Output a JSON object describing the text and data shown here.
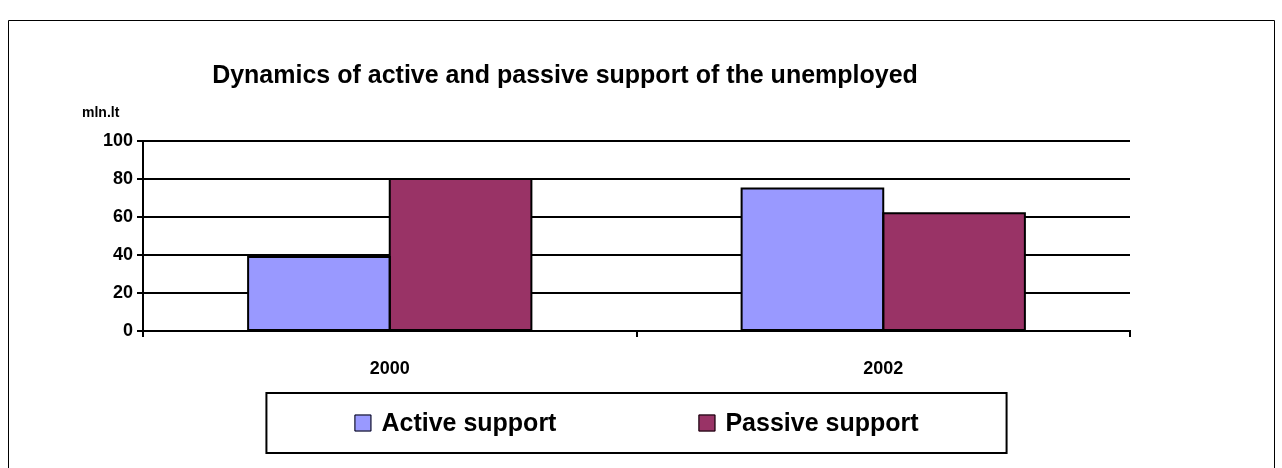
{
  "chart_data": {
    "type": "bar",
    "title": "Dynamics of active and passive support of the unemployed",
    "ylabel": "mln.lt",
    "categories": [
      "2000",
      "2002"
    ],
    "series": [
      {
        "name": "Active support",
        "color": "#9999ff",
        "values": [
          39,
          75
        ]
      },
      {
        "name": "Passive support",
        "color": "#993366",
        "values": [
          80,
          62
        ]
      }
    ],
    "ylim": [
      0,
      100
    ],
    "yticks": [
      0,
      20,
      40,
      60,
      80,
      100
    ],
    "grid": "y",
    "legend": "bottom"
  }
}
